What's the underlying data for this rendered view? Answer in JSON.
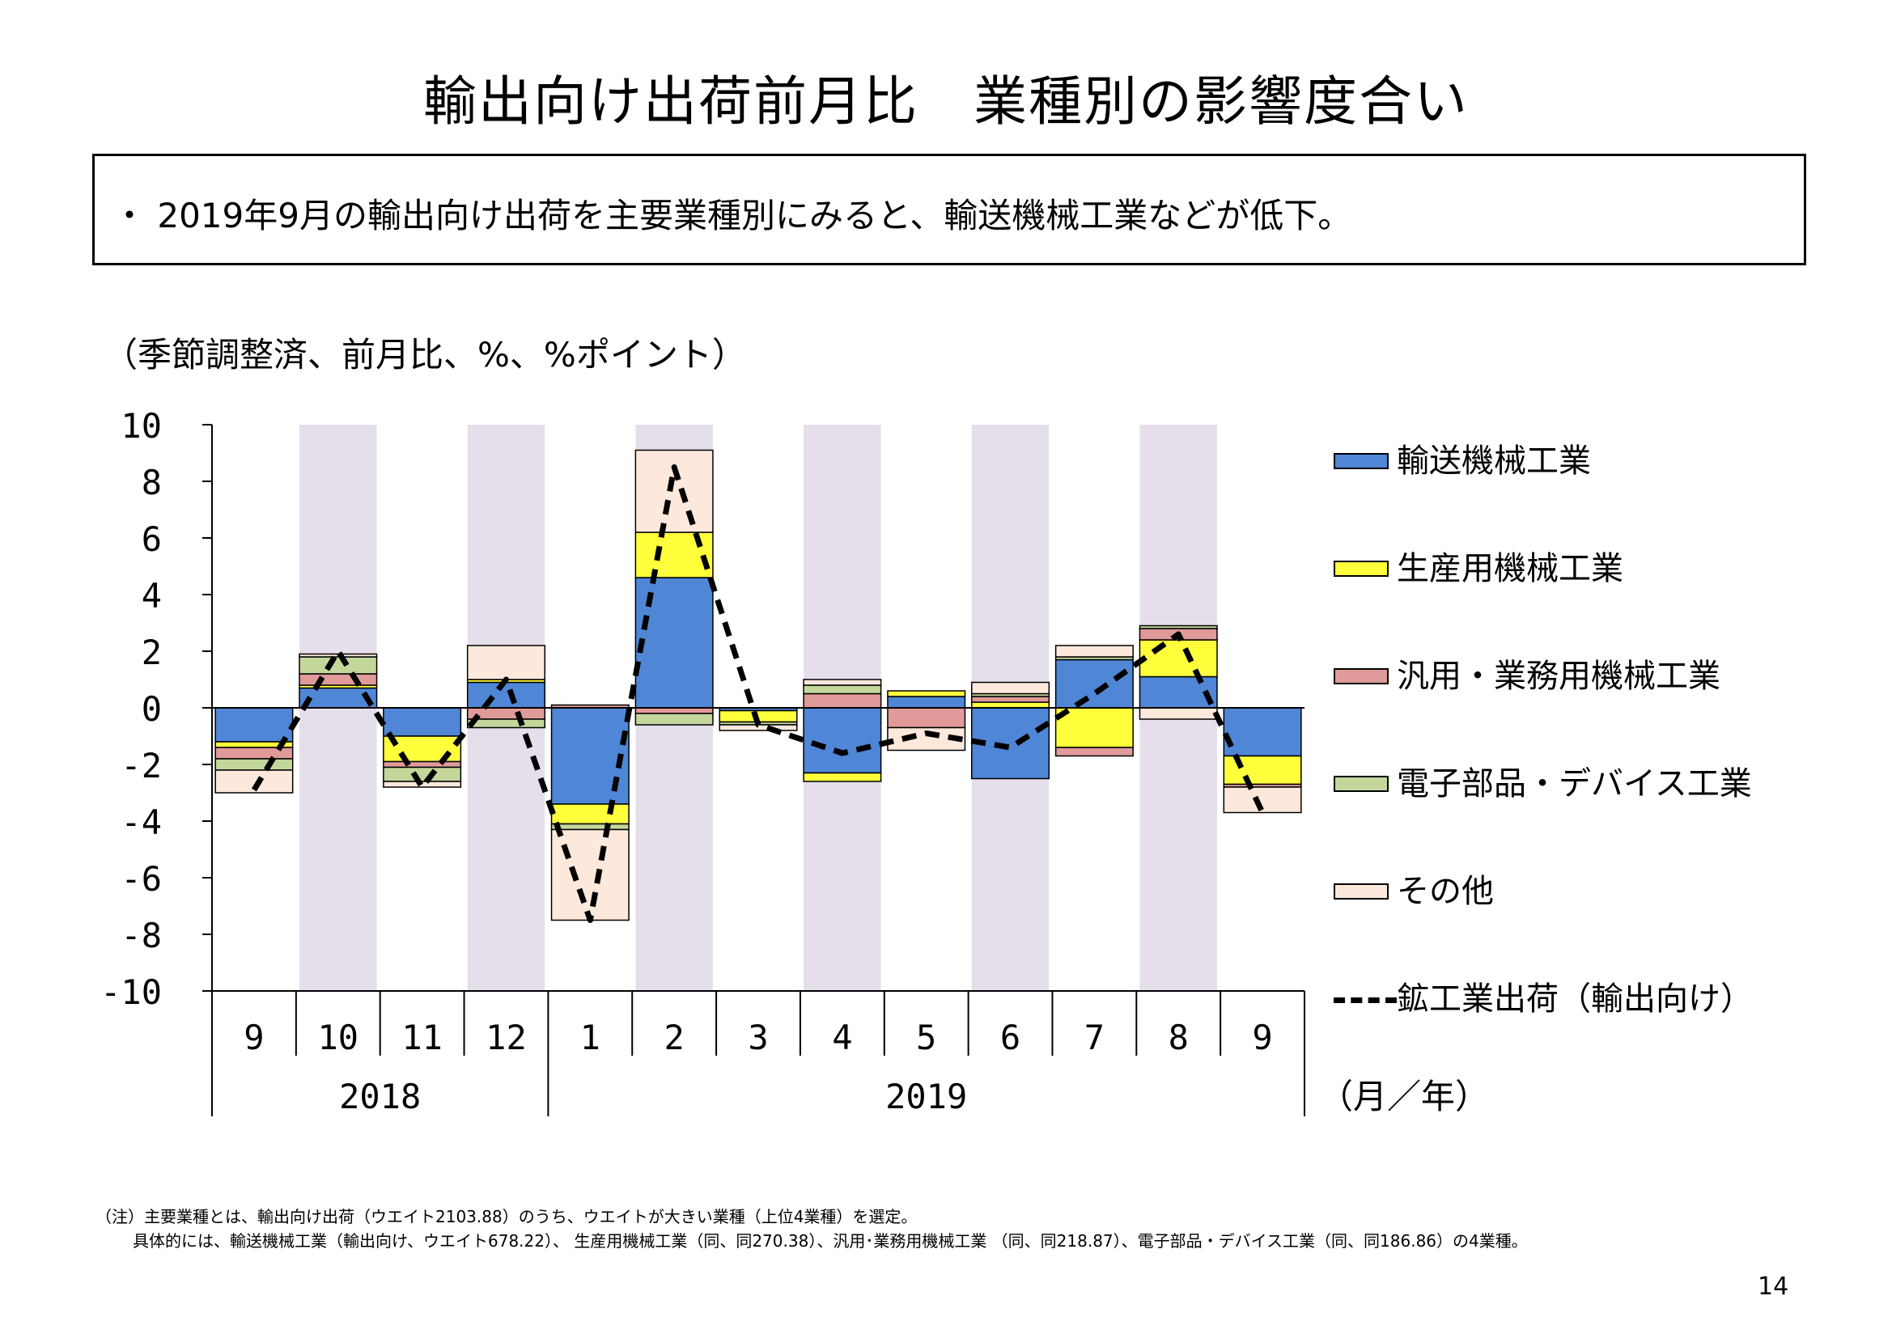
{
  "title": "輸出向け出荷前月比　業種別の影響度合い",
  "summary": "・ 2019年9月の輸出向け出荷を主要業種別にみると、輸送機械工業などが低下。",
  "unit_label": "（季節調整済、前月比、%、%ポイント）",
  "axis_suffix": "（月／年）",
  "notes": {
    "line1": "（注）主要業種とは、輸出向け出荷（ウエイト2103.88）のうち、ウエイトが大きい業種（上位4業種）を選定。",
    "line2": "具体的には、輸送機械工業（輸出向け、ウエイト678.22）、 生産用機械工業（同、同270.38）、汎用･業務用機械工業 （同、同218.87）、電子部品・デバイス工業（同、同186.86）の4業種。"
  },
  "page_number": "14",
  "colors": {
    "transport": "#4f86d6",
    "production": "#ffff3c",
    "general": "#e09a9a",
    "electronic": "#c4d79b",
    "other": "#fde9dc",
    "band": "#e5dfec",
    "line": "#000000"
  },
  "chart_data": {
    "type": "bar",
    "stacked": true,
    "categories": [
      "9",
      "10",
      "11",
      "12",
      "1",
      "2",
      "3",
      "4",
      "5",
      "6",
      "7",
      "8",
      "9"
    ],
    "year_groups": [
      {
        "label": "2018",
        "count": 4
      },
      {
        "label": "2019",
        "count": 9
      }
    ],
    "ylim": [
      -10,
      10
    ],
    "yticks": [
      10,
      8,
      6,
      4,
      2,
      0,
      -2,
      -4,
      -6,
      -8,
      -10
    ],
    "shaded_columns": [
      1,
      3,
      5,
      7,
      9,
      11
    ],
    "series": [
      {
        "name": "輸送機械工業",
        "key": "transport",
        "values": [
          -1.2,
          0.7,
          -1.0,
          0.9,
          -3.4,
          4.6,
          -0.1,
          -2.3,
          0.4,
          -2.5,
          1.7,
          1.1,
          -1.7
        ]
      },
      {
        "name": "生産用機械工業",
        "key": "production",
        "values": [
          -0.2,
          0.1,
          -0.9,
          0.1,
          -0.7,
          1.6,
          -0.4,
          -0.3,
          0.2,
          0.2,
          -1.4,
          1.3,
          -1.0
        ]
      },
      {
        "name": "汎用・業務用機械工業",
        "key": "general",
        "values": [
          -0.4,
          0.4,
          -0.2,
          -0.4,
          0.1,
          -0.2,
          0.0,
          0.5,
          -0.7,
          0.2,
          -0.3,
          0.4,
          -0.1
        ]
      },
      {
        "name": "電子部品・デバイス工業",
        "key": "electronic",
        "values": [
          -0.4,
          0.6,
          -0.5,
          -0.3,
          -0.2,
          -0.4,
          -0.1,
          0.3,
          0.0,
          0.1,
          0.1,
          0.1,
          0.0
        ]
      },
      {
        "name": "その他",
        "key": "other",
        "values": [
          -0.8,
          0.1,
          -0.2,
          1.2,
          -3.2,
          2.9,
          -0.2,
          0.2,
          -0.8,
          0.4,
          0.4,
          -0.4,
          -0.9
        ]
      }
    ],
    "line_series": {
      "name": "鉱工業出荷（輸出向け）",
      "values": [
        -2.9,
        2.0,
        -2.8,
        1.0,
        -7.5,
        8.5,
        -0.6,
        -1.6,
        -0.9,
        -1.4,
        0.5,
        2.6,
        -3.7
      ]
    },
    "legend_position": "right"
  }
}
